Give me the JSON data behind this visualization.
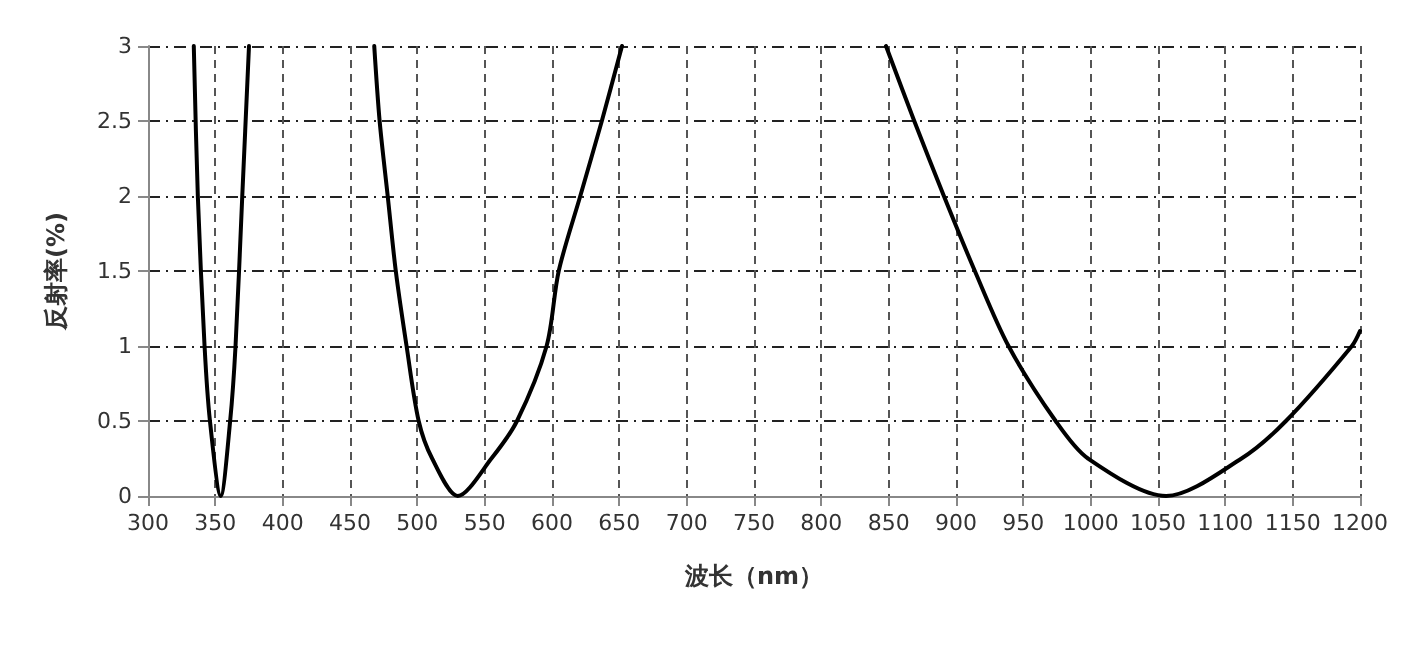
{
  "chart_data": {
    "type": "line",
    "xlabel": "波长（nm）",
    "ylabel": "反射率(%)",
    "x": [
      334,
      337,
      342,
      346,
      354,
      361,
      365,
      370,
      375,
      null,
      468,
      472,
      478,
      484,
      492,
      501,
      511,
      530,
      555,
      574,
      596,
      605,
      621,
      637,
      652,
      null,
      848,
      869,
      891,
      914,
      939,
      974,
      998,
      1056,
      1112,
      1145,
      1194,
      1200
    ],
    "series": [
      {
        "color": "#000000",
        "values": [
          3,
          2,
          1,
          0.5,
          0,
          0.5,
          1,
          2,
          3,
          null,
          3,
          2.5,
          2,
          1.5,
          1,
          0.5,
          0.25,
          0,
          0.25,
          0.5,
          1,
          1.5,
          2,
          2.5,
          3,
          null,
          3,
          2.5,
          2,
          1.5,
          1,
          0.5,
          0.25,
          0,
          0.25,
          0.5,
          1,
          1.1
        ]
      }
    ],
    "xlim": [
      300,
      1200
    ],
    "xticks": [
      300,
      350,
      400,
      450,
      500,
      550,
      600,
      650,
      700,
      750,
      800,
      850,
      900,
      950,
      1000,
      1050,
      1100,
      1150,
      1200
    ],
    "ylim": [
      0,
      3
    ],
    "yticks": [
      0,
      0.5,
      1,
      1.5,
      2,
      2.5,
      3
    ],
    "grid": true,
    "marker": "none",
    "line_style": "solid"
  }
}
